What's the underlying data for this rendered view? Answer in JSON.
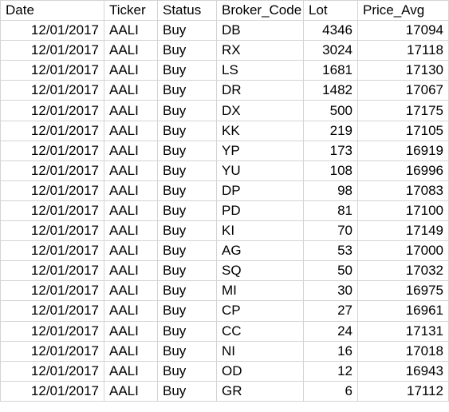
{
  "headers": [
    "Date",
    "Ticker",
    "Status",
    "Broker_Code",
    "Lot",
    "Price_Avg"
  ],
  "rows": [
    [
      "12/01/2017",
      "AALI",
      "Buy",
      "DB",
      "4346",
      "17094"
    ],
    [
      "12/01/2017",
      "AALI",
      "Buy",
      "RX",
      "3024",
      "17118"
    ],
    [
      "12/01/2017",
      "AALI",
      "Buy",
      "LS",
      "1681",
      "17130"
    ],
    [
      "12/01/2017",
      "AALI",
      "Buy",
      "DR",
      "1482",
      "17067"
    ],
    [
      "12/01/2017",
      "AALI",
      "Buy",
      "DX",
      "500",
      "17175"
    ],
    [
      "12/01/2017",
      "AALI",
      "Buy",
      "KK",
      "219",
      "17105"
    ],
    [
      "12/01/2017",
      "AALI",
      "Buy",
      "YP",
      "173",
      "16919"
    ],
    [
      "12/01/2017",
      "AALI",
      "Buy",
      "YU",
      "108",
      "16996"
    ],
    [
      "12/01/2017",
      "AALI",
      "Buy",
      "DP",
      "98",
      "17083"
    ],
    [
      "12/01/2017",
      "AALI",
      "Buy",
      "PD",
      "81",
      "17100"
    ],
    [
      "12/01/2017",
      "AALI",
      "Buy",
      "KI",
      "70",
      "17149"
    ],
    [
      "12/01/2017",
      "AALI",
      "Buy",
      "AG",
      "53",
      "17000"
    ],
    [
      "12/01/2017",
      "AALI",
      "Buy",
      "SQ",
      "50",
      "17032"
    ],
    [
      "12/01/2017",
      "AALI",
      "Buy",
      "MI",
      "30",
      "16975"
    ],
    [
      "12/01/2017",
      "AALI",
      "Buy",
      "CP",
      "27",
      "16961"
    ],
    [
      "12/01/2017",
      "AALI",
      "Buy",
      "CC",
      "24",
      "17131"
    ],
    [
      "12/01/2017",
      "AALI",
      "Buy",
      "NI",
      "16",
      "17018"
    ],
    [
      "12/01/2017",
      "AALI",
      "Buy",
      "OD",
      "12",
      "16943"
    ],
    [
      "12/01/2017",
      "AALI",
      "Buy",
      "GR",
      "6",
      "17112"
    ]
  ],
  "align": [
    "right",
    "left",
    "left",
    "left",
    "right",
    "right"
  ]
}
